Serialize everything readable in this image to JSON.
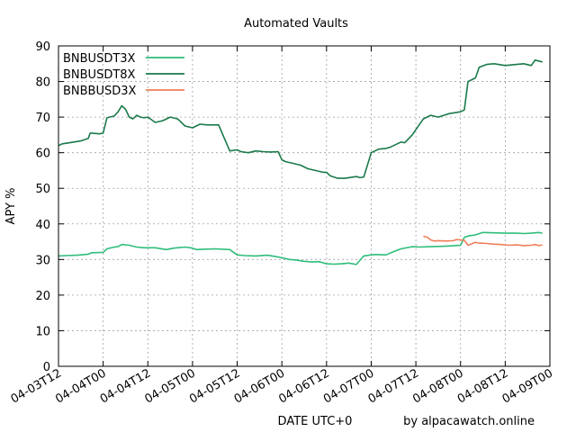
{
  "chart_data": {
    "type": "line",
    "title": "Automated Vaults",
    "xlabel": "DATE UTC+0",
    "ylabel": "APY %",
    "credit": "by alpacawatch.online",
    "ylim": [
      0,
      90
    ],
    "yticks": [
      0,
      10,
      20,
      30,
      40,
      50,
      60,
      70,
      80,
      90
    ],
    "xlim": [
      0,
      132
    ],
    "xtick_values": [
      0,
      12,
      24,
      36,
      48,
      60,
      72,
      84,
      96,
      108,
      120,
      132
    ],
    "xtick_labels": [
      "04-03T12",
      "04-04T00",
      "04-04T12",
      "04-05T00",
      "04-05T12",
      "04-06T00",
      "04-06T12",
      "04-07T00",
      "04-07T12",
      "04-08T00",
      "04-08T12",
      "04-09T00"
    ],
    "grid": true,
    "legend_position": "top-left",
    "series": [
      {
        "name": "BNBUSDT3X",
        "color": "#2ebd7a",
        "x": [
          0,
          2,
          5,
          8,
          9,
          12,
          13,
          15,
          16,
          17,
          19,
          21,
          23,
          26,
          29,
          31,
          34,
          36,
          37,
          39,
          42,
          46,
          48,
          50,
          53,
          56,
          58,
          60,
          62,
          64,
          66,
          68,
          70,
          72,
          74,
          76,
          78,
          80,
          82,
          84,
          85,
          88,
          90,
          92,
          95,
          97,
          100,
          103,
          105,
          108,
          109,
          110,
          112,
          114,
          117,
          120,
          123,
          125,
          127,
          129,
          130
        ],
        "values": [
          31.0,
          31.1,
          31.2,
          31.5,
          31.9,
          32.0,
          33.0,
          33.5,
          33.6,
          34.2,
          34.0,
          33.5,
          33.3,
          33.3,
          32.8,
          33.2,
          33.5,
          33.2,
          32.8,
          32.9,
          33.0,
          32.8,
          31.3,
          31.1,
          31.0,
          31.2,
          30.9,
          30.5,
          30.0,
          29.8,
          29.5,
          29.3,
          29.4,
          28.8,
          28.7,
          28.8,
          29.0,
          28.6,
          31.0,
          31.3,
          31.4,
          31.3,
          32.2,
          33.0,
          33.6,
          33.5,
          33.6,
          33.7,
          33.8,
          34.0,
          36.2,
          36.6,
          36.9,
          37.6,
          37.5,
          37.4,
          37.4,
          37.3,
          37.4,
          37.6,
          37.4
        ]
      },
      {
        "name": "BNBUSDT8X",
        "color": "#1a7a4a",
        "x": [
          0,
          1,
          3,
          6,
          8,
          8.5,
          9,
          11,
          12,
          13,
          15,
          16,
          17,
          18,
          19,
          20,
          21,
          22,
          23,
          24,
          26,
          28,
          30,
          32,
          34,
          36,
          37,
          38,
          40,
          43,
          46,
          48,
          49,
          51,
          53,
          55,
          57,
          59,
          60,
          61,
          63,
          65,
          67,
          69,
          71,
          72,
          73,
          75,
          77,
          80,
          81,
          82,
          84,
          86,
          88,
          89,
          90,
          92,
          93,
          95,
          98,
          100,
          102,
          105,
          108,
          109,
          110,
          111,
          112,
          113,
          115,
          117,
          120,
          123,
          125,
          127,
          128,
          130
        ],
        "values": [
          62.0,
          62.5,
          62.8,
          63.3,
          64.0,
          65.5,
          65.5,
          65.3,
          65.5,
          69.8,
          70.3,
          71.5,
          73.2,
          72.2,
          70.0,
          69.5,
          70.5,
          70.0,
          69.8,
          70.0,
          68.5,
          69.0,
          70.0,
          69.5,
          67.5,
          67.0,
          67.5,
          68.0,
          67.8,
          67.8,
          60.5,
          60.8,
          60.3,
          60.0,
          60.5,
          60.3,
          60.2,
          60.3,
          58.0,
          57.5,
          57.0,
          56.5,
          55.5,
          55.0,
          54.5,
          54.5,
          53.5,
          52.8,
          52.8,
          53.3,
          53.0,
          53.2,
          60.0,
          61.0,
          61.2,
          61.5,
          62.0,
          63.0,
          62.8,
          65.0,
          69.5,
          70.5,
          70.0,
          71.0,
          71.5,
          72.0,
          80.0,
          80.5,
          81.0,
          84.0,
          84.8,
          85.0,
          84.5,
          84.8,
          85.0,
          84.5,
          86.0,
          85.5
        ]
      },
      {
        "name": "BNBBUSD3X",
        "color": "#ef7f5a",
        "x": [
          98,
          99,
          100,
          101,
          102,
          104,
          106,
          107,
          108,
          109,
          110,
          111,
          112,
          113,
          115,
          117,
          119,
          121,
          123,
          125,
          127,
          128,
          129,
          130
        ],
        "values": [
          36.5,
          36.3,
          35.5,
          35.2,
          35.3,
          35.2,
          35.3,
          35.6,
          35.5,
          35.4,
          34.0,
          34.4,
          34.8,
          34.6,
          34.5,
          34.3,
          34.2,
          34.0,
          34.1,
          33.9,
          34.0,
          34.2,
          33.9,
          34.1
        ]
      }
    ]
  }
}
